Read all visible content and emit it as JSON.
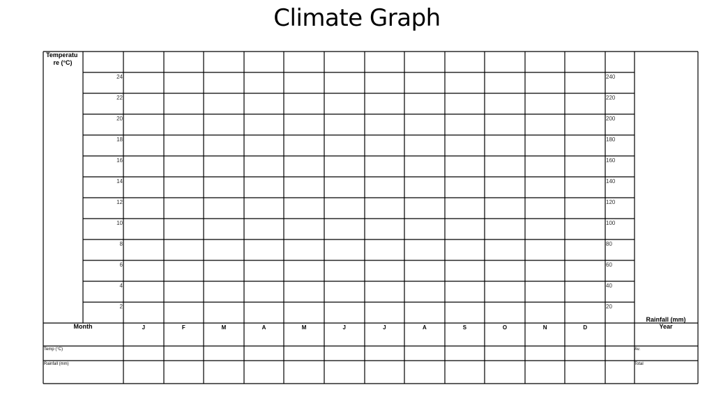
{
  "title": "Climate Graph",
  "chart_data": {
    "type": "bar",
    "title": "Climate Graph",
    "left_axis_label": "Temperature (°C)",
    "right_axis_label": "Rainfall (mm)",
    "left_ticks": [
      "24",
      "22",
      "20",
      "18",
      "16",
      "14",
      "12",
      "10",
      "8",
      "6",
      "4",
      "2"
    ],
    "right_ticks": [
      "240",
      "220",
      "200",
      "180",
      "160",
      "140",
      "120",
      "100",
      "80",
      "60",
      "40",
      "20"
    ],
    "categories": [
      "J",
      "F",
      "M",
      "A",
      "M",
      "J",
      "J",
      "A",
      "S",
      "O",
      "N",
      "D"
    ],
    "series": [],
    "grid": true
  },
  "table": {
    "month_label": "Month",
    "year_label": "Year",
    "temp_label": "Temp (°C)",
    "rainfall_label": "Rainfall (mm)",
    "average_label": "Av.",
    "total_label": "Total"
  }
}
